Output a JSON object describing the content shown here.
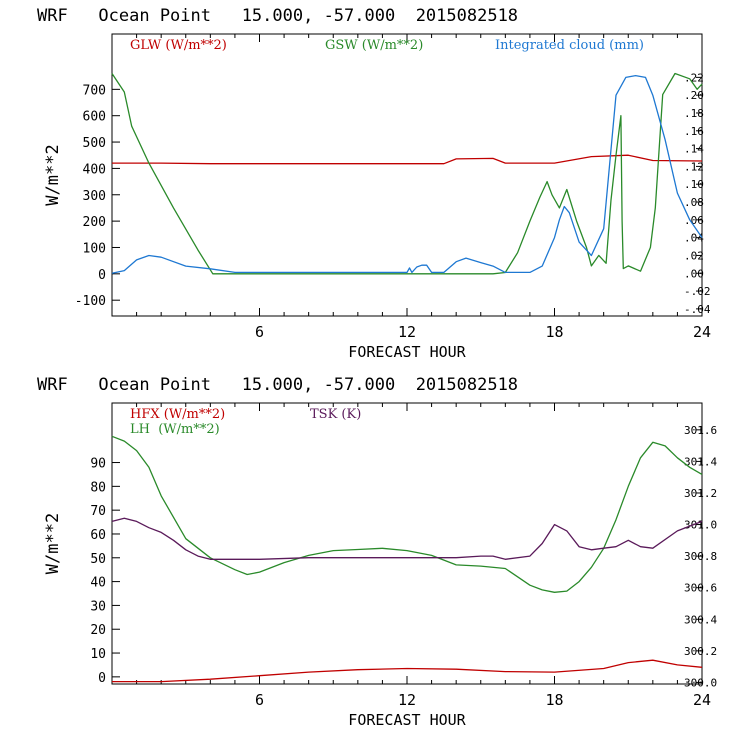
{
  "page": {
    "background": "#ffffff",
    "frame_color": "#000000"
  },
  "chart_data": [
    {
      "type": "line",
      "title": "WRF   Ocean Point   15.000, -57.000  2015082518",
      "xlabel": "FORECAST HOUR",
      "ylabel": "W/m**2",
      "xlim": [
        0,
        24
      ],
      "xticks": [
        "6",
        "12",
        "18",
        "24"
      ],
      "ylim": [
        -160,
        910
      ],
      "yticks": [
        "-100",
        "0",
        "100",
        "200",
        "300",
        "400",
        "500",
        "600",
        "700"
      ],
      "y2lim": [
        -0.048,
        0.2687
      ],
      "y2ticks": [
        "-.04",
        "-.02",
        ".00",
        ".02",
        ".04",
        ".06",
        ".08",
        ".10",
        ".12",
        ".14",
        ".16",
        ".18",
        ".20",
        ".22"
      ],
      "legend": "top",
      "series": [
        {
          "name": "GLW (W/m**2)",
          "color": "#c00000",
          "axis": "left",
          "x": [
            0,
            2,
            4,
            6,
            8,
            10,
            12,
            13.5,
            14,
            15.5,
            16,
            16.5,
            18,
            19.5,
            21,
            22,
            24
          ],
          "y": [
            420,
            420,
            418,
            418,
            418,
            418,
            418,
            418,
            436,
            438,
            420,
            420,
            420,
            445,
            450,
            430,
            428
          ]
        },
        {
          "name": "GSW (W/m**2)",
          "color": "#2a8a2a",
          "axis": "left",
          "x": [
            0,
            0.5,
            0.8,
            1.5,
            2.5,
            3.5,
            4.1,
            4.5,
            6,
            8,
            10,
            12,
            14,
            15.5,
            16,
            16.5,
            17,
            17.4,
            17.7,
            17.9,
            18.2,
            18.5,
            18.9,
            19.3,
            19.5,
            19.8,
            20.1,
            20.3,
            20.5,
            20.7,
            20.75,
            20.8,
            21,
            21.5,
            21.9,
            22.1,
            22.4,
            22.9,
            23.5,
            23.8,
            24
          ],
          "y": [
            760,
            690,
            560,
            420,
            250,
            90,
            0,
            0,
            0,
            0,
            0,
            0,
            0,
            0,
            5,
            80,
            200,
            290,
            350,
            300,
            250,
            320,
            200,
            100,
            30,
            70,
            40,
            280,
            450,
            600,
            200,
            20,
            30,
            10,
            100,
            250,
            680,
            760,
            740,
            700,
            720
          ]
        },
        {
          "name": "Integrated cloud (mm)",
          "color": "#1e78d2",
          "axis": "right",
          "x": [
            0,
            0.5,
            1,
            1.5,
            2,
            3,
            4,
            5,
            6,
            8,
            10,
            12,
            12.1,
            12.2,
            12.4,
            12.6,
            12.8,
            13,
            13.2,
            13.5,
            14,
            14.4,
            15,
            15.5,
            16,
            17,
            17.5,
            18,
            18.2,
            18.4,
            18.6,
            19,
            19.5,
            20,
            20.5,
            20.9,
            21.3,
            21.7,
            22,
            22.5,
            23,
            23.5,
            24
          ],
          "y": [
            0,
            0.003,
            0.015,
            0.02,
            0.018,
            0.008,
            0.005,
            0.001,
            0.001,
            0.001,
            0.001,
            0.001,
            0.006,
            0.001,
            0.007,
            0.009,
            0.009,
            0.001,
            0.001,
            0.001,
            0.013,
            0.017,
            0.012,
            0.008,
            0.001,
            0.001,
            0.008,
            0.04,
            0.06,
            0.075,
            0.068,
            0.035,
            0.02,
            0.05,
            0.2,
            0.22,
            0.222,
            0.22,
            0.2,
            0.15,
            0.09,
            0.06,
            0.04
          ]
        }
      ]
    },
    {
      "type": "line",
      "title": "WRF   Ocean Point   15.000, -57.000  2015082518",
      "xlabel": "FORECAST HOUR",
      "ylabel": "W/m**2",
      "xlim": [
        0,
        24
      ],
      "xticks": [
        "6",
        "12",
        "18",
        "24"
      ],
      "ylim": [
        -3,
        115
      ],
      "yticks": [
        "0",
        "10",
        "20",
        "30",
        "40",
        "50",
        "60",
        "70",
        "80",
        "90"
      ],
      "y2lim": [
        299.99,
        301.77
      ],
      "y2ticks": [
        "300.0",
        "300.2",
        "300.4",
        "300.6",
        "300.8",
        "301.0",
        "301.2",
        "301.4",
        "301.6"
      ],
      "legend": "top",
      "series": [
        {
          "name": "HFX (W/m**2)",
          "color": "#c00000",
          "axis": "left",
          "x": [
            0,
            2,
            4,
            6,
            8,
            10,
            12,
            14,
            16,
            18,
            20,
            21,
            22,
            23,
            24
          ],
          "y": [
            -2,
            -2,
            -1,
            0.5,
            2,
            3,
            3.5,
            3.2,
            2.2,
            2,
            3.5,
            6,
            7,
            5,
            4
          ]
        },
        {
          "name": "LH  (W/m**2)",
          "color": "#2a8a2a",
          "axis": "left",
          "x": [
            0,
            0.5,
            1,
            1.5,
            2,
            3,
            4,
            5,
            5.5,
            6,
            7,
            8,
            9,
            10,
            11,
            12,
            13,
            14,
            15,
            16,
            16.5,
            17,
            17.5,
            18,
            18.5,
            19,
            19.5,
            20,
            20.5,
            21,
            21.5,
            22,
            22.5,
            23,
            23.5,
            24
          ],
          "y": [
            101,
            99,
            95,
            88,
            76,
            58,
            50,
            45,
            43,
            44,
            48,
            51,
            53,
            53.5,
            54,
            53,
            51,
            47,
            46.5,
            45.5,
            42,
            38.5,
            36.5,
            35.5,
            36,
            40,
            46,
            54,
            66,
            80,
            92,
            98.5,
            97,
            92,
            88,
            85
          ]
        },
        {
          "name": "TSK (K)",
          "color": "#5a1a5a",
          "axis": "right",
          "x": [
            0,
            0.5,
            1,
            1.5,
            2,
            2.5,
            3,
            3.5,
            4,
            5,
            6,
            8,
            10,
            12,
            14,
            15,
            15.5,
            16,
            17,
            17.5,
            18,
            18.5,
            19,
            19.5,
            20,
            20.5,
            21,
            21.5,
            22,
            23,
            24
          ],
          "y": [
            301.02,
            301.04,
            301.02,
            300.98,
            300.95,
            300.9,
            300.84,
            300.8,
            300.78,
            300.78,
            300.78,
            300.79,
            300.79,
            300.79,
            300.79,
            300.8,
            300.8,
            300.78,
            300.8,
            300.88,
            301.0,
            300.96,
            300.86,
            300.84,
            300.85,
            300.86,
            300.9,
            300.86,
            300.85,
            300.96,
            301.02
          ]
        }
      ]
    }
  ]
}
